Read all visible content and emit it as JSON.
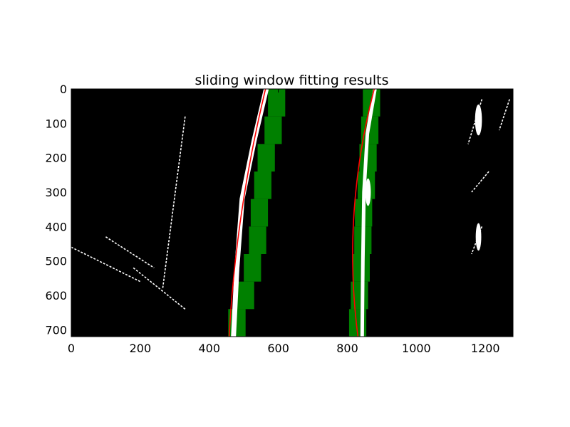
{
  "chart_data": {
    "type": "image",
    "title": "sliding window fitting results",
    "xlabel": "",
    "ylabel": "",
    "xlim": [
      0,
      1280
    ],
    "ylim": [
      720,
      0
    ],
    "x_ticks": [
      0,
      200,
      400,
      600,
      800,
      1000,
      1200
    ],
    "y_ticks": [
      0,
      100,
      200,
      300,
      400,
      500,
      600,
      700
    ],
    "colors": {
      "background": "#000000",
      "lane_pixels": "#ffffff",
      "window_fill": "#008000",
      "fit_line": "#ff0000"
    },
    "windows": {
      "left": [
        [
          [
            455,
            505
          ],
          [
            480,
            530
          ],
          [
            500,
            550
          ],
          [
            515,
            565
          ],
          [
            520,
            570
          ],
          [
            530,
            580
          ],
          [
            540,
            590
          ],
          [
            560,
            610
          ],
          [
            570,
            620
          ]
        ],
        [
          [
            455,
            505
          ]
        ]
      ],
      "right": [
        [
          [
            805,
            855
          ],
          [
            810,
            860
          ],
          [
            815,
            865
          ],
          [
            820,
            870
          ],
          [
            822,
            872
          ],
          [
            830,
            880
          ],
          [
            835,
            885
          ],
          [
            840,
            890
          ],
          [
            845,
            895
          ]
        ]
      ]
    },
    "fit_left": {
      "a": 0.00013,
      "b": -0.24,
      "c": 563
    },
    "fit_right": {
      "a": 0.00027,
      "b": -0.26,
      "c": 878
    },
    "lane_left": [
      [
        565,
        0
      ],
      [
        530,
        150
      ],
      [
        495,
        320
      ],
      [
        480,
        520
      ],
      [
        470,
        720
      ]
    ],
    "lane_right": [
      [
        880,
        0
      ],
      [
        858,
        130
      ],
      [
        848,
        300
      ],
      [
        845,
        500
      ],
      [
        843,
        720
      ]
    ]
  }
}
